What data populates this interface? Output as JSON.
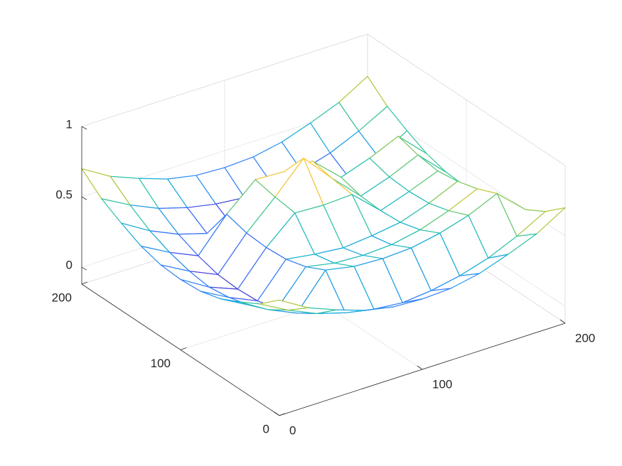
{
  "chart_data": {
    "type": "mesh",
    "x": [
      0,
      20,
      40,
      60,
      80,
      100,
      120,
      140,
      160,
      180,
      200
    ],
    "y": [
      0,
      20,
      40,
      60,
      80,
      100,
      120,
      140,
      160,
      180,
      200
    ],
    "z": [
      [
        0.7,
        0.58,
        0.5,
        0.43,
        0.39,
        0.38,
        0.39,
        0.43,
        0.5,
        0.58,
        0.7
      ],
      [
        0.58,
        0.47,
        0.38,
        0.32,
        0.28,
        0.26,
        0.28,
        0.32,
        0.38,
        0.47,
        0.58
      ],
      [
        0.5,
        0.38,
        0.29,
        0.53,
        0.49,
        0.48,
        0.49,
        0.53,
        0.59,
        0.68,
        0.5
      ],
      [
        0.43,
        0.32,
        0.23,
        0.46,
        0.42,
        0.41,
        0.42,
        0.46,
        0.53,
        0.62,
        0.43
      ],
      [
        0.39,
        0.28,
        0.19,
        0.42,
        0.39,
        0.37,
        0.39,
        0.42,
        0.49,
        0.58,
        0.39
      ],
      [
        0.38,
        0.26,
        0.18,
        0.41,
        0.59,
        0.58,
        0.59,
        0.41,
        0.48,
        0.56,
        0.38
      ],
      [
        0.39,
        0.28,
        0.19,
        0.42,
        0.61,
        0.82,
        0.61,
        0.42,
        0.49,
        0.58,
        0.39
      ],
      [
        0.43,
        0.32,
        0.23,
        0.46,
        0.64,
        0.63,
        0.64,
        0.46,
        0.53,
        0.62,
        0.43
      ],
      [
        0.5,
        0.38,
        0.29,
        0.23,
        0.19,
        0.18,
        0.19,
        0.23,
        0.29,
        0.38,
        0.5
      ],
      [
        0.58,
        0.47,
        0.38,
        0.32,
        0.28,
        0.26,
        0.28,
        0.32,
        0.38,
        0.47,
        0.58
      ],
      [
        0.7,
        0.58,
        0.5,
        0.43,
        0.39,
        0.38,
        0.39,
        0.43,
        0.5,
        0.58,
        0.7
      ]
    ],
    "xlim": [
      0,
      200
    ],
    "ylim": [
      0,
      200
    ],
    "zlim": [
      -0.12,
      1
    ],
    "xticks": [
      0,
      100,
      200
    ],
    "yticks": [
      0,
      100,
      200
    ],
    "zticks": [
      0,
      0.5,
      1
    ],
    "grid": true,
    "colormap": "parula"
  }
}
